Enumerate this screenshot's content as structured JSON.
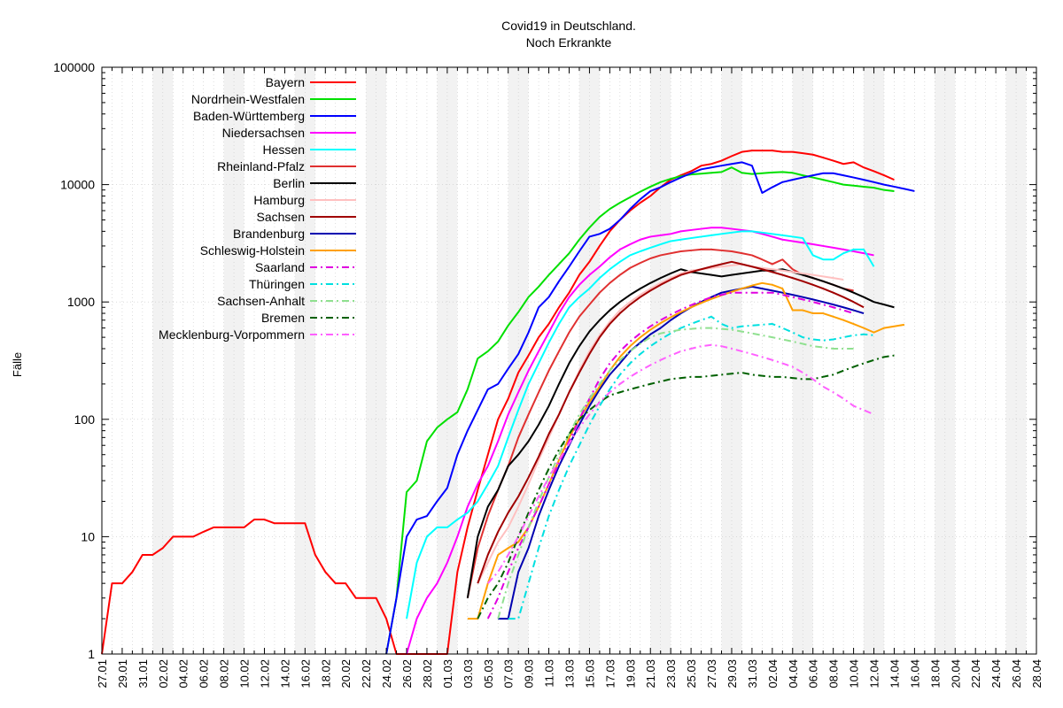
{
  "chart_data": {
    "type": "line",
    "title": "Covid19 in Deutschland.",
    "subtitle": "Noch Erkrankte",
    "ylabel": "Fälle",
    "xlabel": "",
    "yscale": "log",
    "ylim": [
      1,
      100000
    ],
    "y_ticks": [
      "1",
      "10",
      "100",
      "1000",
      "10000",
      "100000"
    ],
    "x_ticks": [
      "27.01",
      "29.01",
      "31.01",
      "02.02",
      "04.02",
      "06.02",
      "08.02",
      "10.02",
      "12.02",
      "14.02",
      "16.02",
      "18.02",
      "20.02",
      "22.02",
      "24.02",
      "26.02",
      "28.02",
      "01.03",
      "03.03",
      "05.03",
      "07.03",
      "09.03",
      "11.03",
      "13.03",
      "15.03",
      "17.03",
      "19.03",
      "21.03",
      "23.03",
      "25.03",
      "27.03",
      "29.03",
      "31.03",
      "02.04",
      "04.04",
      "06.04",
      "08.04",
      "10.04",
      "12.04",
      "14.04",
      "16.04",
      "18.04",
      "20.04",
      "22.04",
      "24.04",
      "26.04",
      "28.04"
    ],
    "grid": true,
    "weekend_shading": true,
    "legend_position": "top-left",
    "series": [
      {
        "name": "Bayern",
        "color": "#ff0000",
        "dash": "solid",
        "start": "27.01",
        "values": [
          1,
          4,
          4,
          5,
          7,
          7,
          8,
          10,
          10,
          10,
          11,
          12,
          12,
          12,
          12,
          14,
          14,
          13,
          13,
          13,
          13,
          7,
          5,
          4,
          4,
          3,
          3,
          3,
          2,
          1,
          1,
          1,
          1,
          1,
          1,
          5,
          12,
          25,
          50,
          100,
          150,
          250,
          350,
          500,
          650,
          900,
          1200,
          1700,
          2200,
          3000,
          4000,
          5000,
          6000,
          7000,
          8000,
          9500,
          11000,
          12000,
          13000,
          14500,
          15000,
          16000,
          17500,
          19000,
          19500,
          19500,
          19500,
          19000,
          19000,
          18500,
          18000,
          17000,
          16000,
          15000,
          15500,
          14000,
          13000,
          12000,
          11000
        ]
      },
      {
        "name": "Nordrhein-Westfalen",
        "color": "#00e000",
        "dash": "solid",
        "start": "24.02",
        "values": [
          1,
          3,
          24,
          30,
          65,
          85,
          100,
          115,
          180,
          330,
          380,
          460,
          630,
          820,
          1100,
          1350,
          1700,
          2100,
          2600,
          3400,
          4300,
          5300,
          6200,
          7000,
          7800,
          8700,
          9600,
          10500,
          11200,
          11800,
          12200,
          12400,
          12600,
          12800,
          14000,
          12600,
          12300,
          12500,
          12700,
          12800,
          12600,
          12000,
          11500,
          11000,
          10500,
          10000,
          9800,
          9600,
          9400,
          9000,
          8800
        ]
      },
      {
        "name": "Baden-Württemberg",
        "color": "#0000ff",
        "dash": "solid",
        "start": "24.02",
        "values": [
          1,
          3,
          10,
          14,
          15,
          20,
          26,
          50,
          80,
          120,
          180,
          200,
          270,
          360,
          550,
          900,
          1100,
          1500,
          2000,
          2700,
          3600,
          3800,
          4200,
          5000,
          6200,
          7500,
          8800,
          9500,
          10500,
          11500,
          12500,
          13500,
          14000,
          14500,
          15000,
          15500,
          14500,
          8500,
          9500,
          10500,
          11000,
          11500,
          12000,
          12500,
          12500,
          12000,
          11500,
          11000,
          10500,
          10000,
          9600,
          9200,
          8800
        ]
      },
      {
        "name": "Niedersachsen",
        "color": "#ff00ff",
        "dash": "solid",
        "start": "26.02",
        "values": [
          1,
          2,
          3,
          4,
          6,
          10,
          18,
          28,
          40,
          65,
          110,
          170,
          260,
          380,
          550,
          800,
          1100,
          1400,
          1700,
          2000,
          2400,
          2800,
          3100,
          3400,
          3600,
          3700,
          3800,
          4000,
          4100,
          4200,
          4300,
          4300,
          4200,
          4100,
          4000,
          3800,
          3600,
          3400,
          3300,
          3200,
          3100,
          3000,
          2900,
          2800,
          2700,
          2600,
          2500
        ]
      },
      {
        "name": "Hessen",
        "color": "#00ffff",
        "dash": "solid",
        "start": "26.02",
        "values": [
          2,
          6,
          10,
          12,
          12,
          14,
          16,
          20,
          28,
          40,
          70,
          120,
          200,
          300,
          450,
          650,
          900,
          1100,
          1300,
          1600,
          1900,
          2200,
          2500,
          2700,
          2900,
          3100,
          3300,
          3400,
          3500,
          3600,
          3700,
          3800,
          3900,
          4000,
          4000,
          3900,
          3800,
          3700,
          3600,
          3500,
          2500,
          2300,
          2300,
          2600,
          2800,
          2800,
          2000
        ]
      },
      {
        "name": "Rheinland-Pfalz",
        "color": "#e03030",
        "dash": "solid",
        "start": "03.03",
        "values": [
          3,
          8,
          15,
          25,
          40,
          70,
          110,
          170,
          260,
          380,
          550,
          750,
          950,
          1200,
          1450,
          1700,
          1950,
          2150,
          2350,
          2500,
          2600,
          2700,
          2750,
          2800,
          2800,
          2750,
          2700,
          2600,
          2500,
          2300,
          2100,
          2300,
          1900,
          1700,
          1600,
          1500,
          1400,
          1300,
          1250
        ]
      },
      {
        "name": "Berlin",
        "color": "#000000",
        "dash": "solid",
        "start": "03.03",
        "values": [
          3,
          10,
          18,
          25,
          40,
          50,
          65,
          90,
          130,
          200,
          300,
          420,
          560,
          700,
          850,
          1000,
          1150,
          1300,
          1450,
          1600,
          1750,
          1900,
          1800,
          1750,
          1700,
          1650,
          1700,
          1750,
          1800,
          1850,
          1850,
          1900,
          1800,
          1700,
          1600,
          1500,
          1400,
          1300,
          1200,
          1100,
          1000,
          950,
          900
        ]
      },
      {
        "name": "Hamburg",
        "color": "#ffc0c0",
        "dash": "solid",
        "start": "04.03",
        "values": [
          4,
          6,
          9,
          12,
          18,
          28,
          45,
          70,
          110,
          170,
          260,
          380,
          520,
          680,
          850,
          1000,
          1150,
          1300,
          1450,
          1600,
          1750,
          1850,
          1900,
          1950,
          2000,
          2050,
          2100,
          2000,
          1950,
          1900,
          1850,
          1800,
          1750,
          1700,
          1650,
          1600,
          1550
        ]
      },
      {
        "name": "Sachsen",
        "color": "#a00000",
        "dash": "solid",
        "start": "04.03",
        "values": [
          4,
          7,
          11,
          16,
          22,
          32,
          48,
          75,
          110,
          170,
          250,
          360,
          500,
          650,
          800,
          950,
          1100,
          1250,
          1400,
          1550,
          1700,
          1800,
          1900,
          2000,
          2100,
          2200,
          2100,
          2000,
          1900,
          1800,
          1700,
          1600,
          1500,
          1400,
          1300,
          1200,
          1100,
          1000,
          900
        ]
      },
      {
        "name": "Brandenburg",
        "color": "#0000b0",
        "dash": "solid",
        "start": "06.03",
        "values": [
          2,
          2,
          5,
          8,
          15,
          25,
          40,
          60,
          90,
          130,
          180,
          240,
          300,
          380,
          450,
          530,
          600,
          700,
          800,
          900,
          1000,
          1100,
          1200,
          1250,
          1300,
          1350,
          1300,
          1250,
          1200,
          1150,
          1100,
          1050,
          1000,
          950,
          900,
          850,
          800
        ]
      },
      {
        "name": "Schleswig-Holstein",
        "color": "#ffa000",
        "dash": "solid",
        "start": "03.03",
        "values": [
          2,
          2,
          4,
          7,
          8,
          9,
          12,
          18,
          28,
          45,
          70,
          100,
          140,
          190,
          260,
          340,
          420,
          500,
          580,
          660,
          740,
          820,
          900,
          980,
          1060,
          1140,
          1220,
          1300,
          1380,
          1450,
          1400,
          1300,
          850,
          850,
          800,
          800,
          750,
          700,
          650,
          600,
          550,
          600,
          620,
          640
        ]
      },
      {
        "name": "Saarland",
        "color": "#e000e0",
        "dash": "dashdot",
        "start": "05.03",
        "values": [
          2,
          3,
          5,
          8,
          12,
          18,
          28,
          42,
          65,
          100,
          150,
          220,
          300,
          380,
          460,
          540,
          620,
          700,
          780,
          860,
          940,
          1020,
          1100,
          1150,
          1200,
          1200,
          1200,
          1200,
          1200,
          1150,
          1100,
          1050,
          1000,
          950,
          900,
          850,
          800
        ]
      },
      {
        "name": "Thüringen",
        "color": "#00e0e0",
        "dash": "dashdot",
        "start": "07.03",
        "values": [
          2,
          2,
          4,
          8,
          15,
          25,
          40,
          60,
          90,
          130,
          180,
          240,
          300,
          360,
          420,
          480,
          540,
          600,
          650,
          700,
          750,
          650,
          600,
          620,
          630,
          640,
          650,
          600,
          550,
          500,
          480,
          470,
          480,
          500,
          520,
          530,
          520
        ]
      },
      {
        "name": "Sachsen-Anhalt",
        "color": "#90e090",
        "dash": "dashdot",
        "start": "06.03",
        "values": [
          2,
          4,
          7,
          12,
          20,
          32,
          50,
          75,
          110,
          150,
          200,
          260,
          320,
          380,
          440,
          500,
          540,
          560,
          580,
          590,
          600,
          600,
          590,
          580,
          560,
          540,
          520,
          500,
          480,
          460,
          440,
          420,
          410,
          400,
          400,
          400
        ]
      },
      {
        "name": "Bremen",
        "color": "#006000",
        "dash": "dashdot",
        "start": "04.03",
        "values": [
          2,
          3,
          4,
          6,
          10,
          16,
          25,
          38,
          55,
          75,
          100,
          120,
          140,
          160,
          170,
          180,
          190,
          200,
          210,
          220,
          225,
          230,
          230,
          235,
          240,
          245,
          250,
          240,
          235,
          230,
          230,
          225,
          220,
          220,
          230,
          240,
          260,
          280,
          300,
          320,
          340,
          350
        ]
      },
      {
        "name": "Mecklenburg-Vorpommern",
        "color": "#ff60ff",
        "dash": "dashdot",
        "start": "05.03",
        "values": [
          4,
          5,
          7,
          10,
          15,
          22,
          32,
          45,
          62,
          85,
          110,
          140,
          170,
          200,
          230,
          260,
          290,
          320,
          350,
          380,
          400,
          420,
          430,
          420,
          400,
          380,
          360,
          340,
          320,
          300,
          280,
          250,
          220,
          190,
          170,
          150,
          130,
          120,
          110
        ]
      }
    ]
  }
}
